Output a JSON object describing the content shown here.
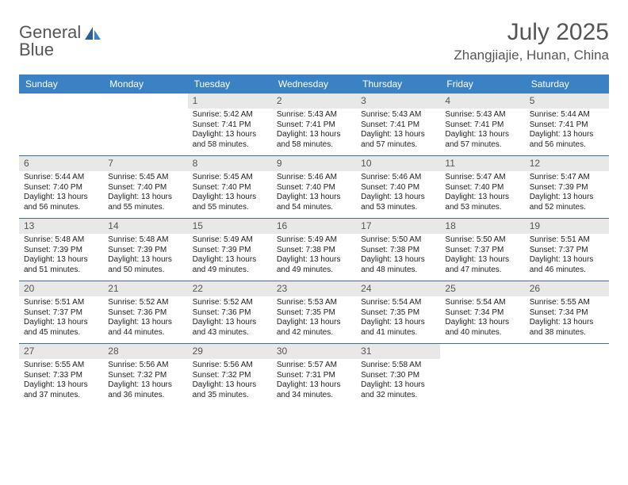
{
  "logo": {
    "line1": "General",
    "line2": "Blue"
  },
  "title": "July 2025",
  "location": "Zhangjiajie, Hunan, China",
  "colors": {
    "header_bg": "#3b82c4",
    "header_text": "#ffffff",
    "daynum_bg": "#e8e8e8",
    "daynum_text": "#555555",
    "border": "#3b6fa0",
    "title_text": "#555555",
    "body_text": "#222222"
  },
  "dow": [
    "Sunday",
    "Monday",
    "Tuesday",
    "Wednesday",
    "Thursday",
    "Friday",
    "Saturday"
  ],
  "weeks": [
    [
      null,
      null,
      {
        "n": "1",
        "sr": "Sunrise: 5:42 AM",
        "ss": "Sunset: 7:41 PM",
        "d1": "Daylight: 13 hours",
        "d2": "and 58 minutes."
      },
      {
        "n": "2",
        "sr": "Sunrise: 5:43 AM",
        "ss": "Sunset: 7:41 PM",
        "d1": "Daylight: 13 hours",
        "d2": "and 58 minutes."
      },
      {
        "n": "3",
        "sr": "Sunrise: 5:43 AM",
        "ss": "Sunset: 7:41 PM",
        "d1": "Daylight: 13 hours",
        "d2": "and 57 minutes."
      },
      {
        "n": "4",
        "sr": "Sunrise: 5:43 AM",
        "ss": "Sunset: 7:41 PM",
        "d1": "Daylight: 13 hours",
        "d2": "and 57 minutes."
      },
      {
        "n": "5",
        "sr": "Sunrise: 5:44 AM",
        "ss": "Sunset: 7:41 PM",
        "d1": "Daylight: 13 hours",
        "d2": "and 56 minutes."
      }
    ],
    [
      {
        "n": "6",
        "sr": "Sunrise: 5:44 AM",
        "ss": "Sunset: 7:40 PM",
        "d1": "Daylight: 13 hours",
        "d2": "and 56 minutes."
      },
      {
        "n": "7",
        "sr": "Sunrise: 5:45 AM",
        "ss": "Sunset: 7:40 PM",
        "d1": "Daylight: 13 hours",
        "d2": "and 55 minutes."
      },
      {
        "n": "8",
        "sr": "Sunrise: 5:45 AM",
        "ss": "Sunset: 7:40 PM",
        "d1": "Daylight: 13 hours",
        "d2": "and 55 minutes."
      },
      {
        "n": "9",
        "sr": "Sunrise: 5:46 AM",
        "ss": "Sunset: 7:40 PM",
        "d1": "Daylight: 13 hours",
        "d2": "and 54 minutes."
      },
      {
        "n": "10",
        "sr": "Sunrise: 5:46 AM",
        "ss": "Sunset: 7:40 PM",
        "d1": "Daylight: 13 hours",
        "d2": "and 53 minutes."
      },
      {
        "n": "11",
        "sr": "Sunrise: 5:47 AM",
        "ss": "Sunset: 7:40 PM",
        "d1": "Daylight: 13 hours",
        "d2": "and 53 minutes."
      },
      {
        "n": "12",
        "sr": "Sunrise: 5:47 AM",
        "ss": "Sunset: 7:39 PM",
        "d1": "Daylight: 13 hours",
        "d2": "and 52 minutes."
      }
    ],
    [
      {
        "n": "13",
        "sr": "Sunrise: 5:48 AM",
        "ss": "Sunset: 7:39 PM",
        "d1": "Daylight: 13 hours",
        "d2": "and 51 minutes."
      },
      {
        "n": "14",
        "sr": "Sunrise: 5:48 AM",
        "ss": "Sunset: 7:39 PM",
        "d1": "Daylight: 13 hours",
        "d2": "and 50 minutes."
      },
      {
        "n": "15",
        "sr": "Sunrise: 5:49 AM",
        "ss": "Sunset: 7:39 PM",
        "d1": "Daylight: 13 hours",
        "d2": "and 49 minutes."
      },
      {
        "n": "16",
        "sr": "Sunrise: 5:49 AM",
        "ss": "Sunset: 7:38 PM",
        "d1": "Daylight: 13 hours",
        "d2": "and 49 minutes."
      },
      {
        "n": "17",
        "sr": "Sunrise: 5:50 AM",
        "ss": "Sunset: 7:38 PM",
        "d1": "Daylight: 13 hours",
        "d2": "and 48 minutes."
      },
      {
        "n": "18",
        "sr": "Sunrise: 5:50 AM",
        "ss": "Sunset: 7:37 PM",
        "d1": "Daylight: 13 hours",
        "d2": "and 47 minutes."
      },
      {
        "n": "19",
        "sr": "Sunrise: 5:51 AM",
        "ss": "Sunset: 7:37 PM",
        "d1": "Daylight: 13 hours",
        "d2": "and 46 minutes."
      }
    ],
    [
      {
        "n": "20",
        "sr": "Sunrise: 5:51 AM",
        "ss": "Sunset: 7:37 PM",
        "d1": "Daylight: 13 hours",
        "d2": "and 45 minutes."
      },
      {
        "n": "21",
        "sr": "Sunrise: 5:52 AM",
        "ss": "Sunset: 7:36 PM",
        "d1": "Daylight: 13 hours",
        "d2": "and 44 minutes."
      },
      {
        "n": "22",
        "sr": "Sunrise: 5:52 AM",
        "ss": "Sunset: 7:36 PM",
        "d1": "Daylight: 13 hours",
        "d2": "and 43 minutes."
      },
      {
        "n": "23",
        "sr": "Sunrise: 5:53 AM",
        "ss": "Sunset: 7:35 PM",
        "d1": "Daylight: 13 hours",
        "d2": "and 42 minutes."
      },
      {
        "n": "24",
        "sr": "Sunrise: 5:54 AM",
        "ss": "Sunset: 7:35 PM",
        "d1": "Daylight: 13 hours",
        "d2": "and 41 minutes."
      },
      {
        "n": "25",
        "sr": "Sunrise: 5:54 AM",
        "ss": "Sunset: 7:34 PM",
        "d1": "Daylight: 13 hours",
        "d2": "and 40 minutes."
      },
      {
        "n": "26",
        "sr": "Sunrise: 5:55 AM",
        "ss": "Sunset: 7:34 PM",
        "d1": "Daylight: 13 hours",
        "d2": "and 38 minutes."
      }
    ],
    [
      {
        "n": "27",
        "sr": "Sunrise: 5:55 AM",
        "ss": "Sunset: 7:33 PM",
        "d1": "Daylight: 13 hours",
        "d2": "and 37 minutes."
      },
      {
        "n": "28",
        "sr": "Sunrise: 5:56 AM",
        "ss": "Sunset: 7:32 PM",
        "d1": "Daylight: 13 hours",
        "d2": "and 36 minutes."
      },
      {
        "n": "29",
        "sr": "Sunrise: 5:56 AM",
        "ss": "Sunset: 7:32 PM",
        "d1": "Daylight: 13 hours",
        "d2": "and 35 minutes."
      },
      {
        "n": "30",
        "sr": "Sunrise: 5:57 AM",
        "ss": "Sunset: 7:31 PM",
        "d1": "Daylight: 13 hours",
        "d2": "and 34 minutes."
      },
      {
        "n": "31",
        "sr": "Sunrise: 5:58 AM",
        "ss": "Sunset: 7:30 PM",
        "d1": "Daylight: 13 hours",
        "d2": "and 32 minutes."
      },
      null,
      null
    ]
  ]
}
